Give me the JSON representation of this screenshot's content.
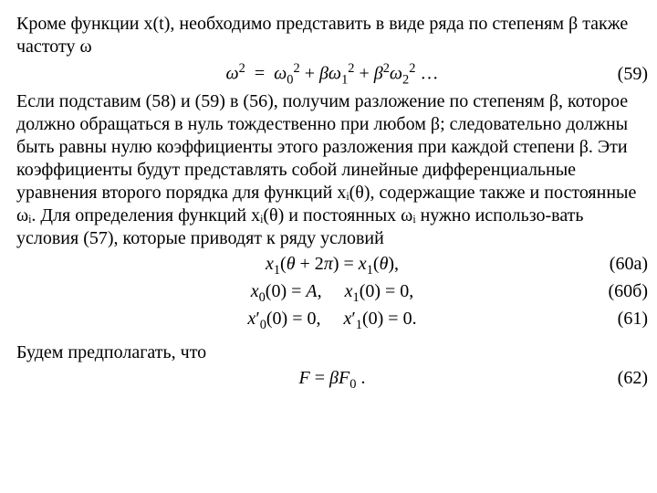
{
  "para1": "Кроме функции x(t), необходимо представить в виде ряда по степеням β также частоту ω",
  "eq59": {
    "html": "<i>ω</i><sup>2</sup> &nbsp;=&nbsp; <i>ω</i><span class='sub2'>0</span><span class='sup2'>2</span> + <i>βω</i><span class='sub2'>1</span><span class='sup2'>2</span> + <i>β</i><sup>2</sup><i>ω</i><span class='sub2'>2</span><span class='sup2'>2</span> &hellip;",
    "num": "(59)"
  },
  "para2": "Если подставим (58) и (59) в (56), получим разложение по степеням β, которое должно обращаться в нуль тождественно при любом β; следовательно должны быть равны нулю коэффициенты этого разложения при каждой степени β. Эти коэффициенты будут представлять собой линейные дифференциальные уравнения второго порядка для функций xᵢ(θ), содержащие также и постоянные ωᵢ. Для определения функций xᵢ(θ) и постоянных ωᵢ нужно использо-вать условия (57), которые приводят к ряду условий",
  "eq60a": {
    "html": "<i>x</i><sub>1</sub>(<i>θ</i> + 2<i>π</i>) = <i>x</i><sub>1</sub>(<i>θ</i>),",
    "num": "(60а)"
  },
  "eq60b": {
    "html": "<i>x</i><sub>0</sub>(0) = <i>A</i>,&nbsp;&nbsp;&nbsp;&nbsp;&nbsp;<i>x</i><sub>1</sub>(0) = 0,",
    "num": "(60б)"
  },
  "eq61": {
    "html": "<i>x</i>&#x2032;<sub>0</sub>(0) = 0,&nbsp;&nbsp;&nbsp;&nbsp;&nbsp;<i>x</i>&#x2032;<sub>1</sub>(0) = 0.",
    "num": "(61)"
  },
  "para3": "Будем предполагать, что",
  "eq62": {
    "html": "<i>F</i> = <i>βF</i><sub>0</sub> .",
    "num": "(62)"
  }
}
